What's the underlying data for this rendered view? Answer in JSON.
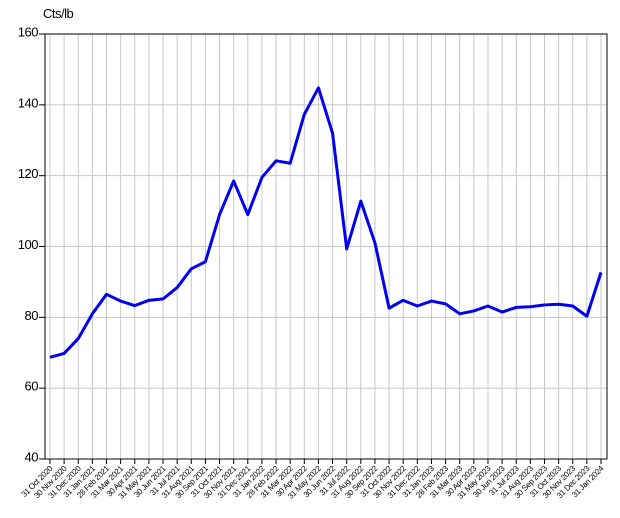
{
  "chart_data": {
    "type": "line",
    "y_label": "Cts/lb",
    "categories": [
      "31 Oct 2020",
      "30 Nov 2020",
      "31 Dec 2020",
      "31 Jan 2021",
      "28 Feb 2021",
      "31 Mar 2021",
      "30 Apr 2021",
      "31 May 2021",
      "30 Jun 2021",
      "31 Jul 2021",
      "31 Aug 2021",
      "30 Sep 2021",
      "31 Oct 2021",
      "30 Nov 2021",
      "31 Dec 2021",
      "31 Jan 2022",
      "28 Feb 2022",
      "31 Mar 2022",
      "30 Apr 2022",
      "31 May 2022",
      "30 Jun 2022",
      "31 Jul 2022",
      "31 Aug 2022",
      "30 Sep 2022",
      "31 Oct 2022",
      "30 Nov 2022",
      "31 Dec 2022",
      "31 Jan 2023",
      "28 Feb 2023",
      "31 Mar 2023",
      "30 Apr 2023",
      "31 May 2023",
      "30 Jun 2023",
      "31 Jul 2023",
      "31 Aug 2023",
      "30 Sep 2023",
      "31 Oct 2023",
      "30 Nov 2023",
      "31 Dec 2023",
      "31 Jan 2024"
    ],
    "values": [
      68.7,
      69.8,
      74,
      81,
      86.5,
      84.6,
      83.3,
      84.8,
      85.2,
      88.4,
      93.7,
      95.7,
      109,
      118.5,
      109,
      119.5,
      124.2,
      123.5,
      137.3,
      144.8,
      132,
      99.3,
      112.8,
      101,
      82.6,
      84.8,
      83.2,
      84.6,
      83.8,
      81,
      81.8,
      83.2,
      81.5,
      82.8,
      83,
      83.5,
      83.7,
      83.2,
      80.3,
      92.7
    ],
    "color": "#0000ee",
    "ylim": [
      40,
      160
    ],
    "yticks": [
      40,
      60,
      80,
      100,
      120,
      140,
      160
    ],
    "grid": true
  }
}
